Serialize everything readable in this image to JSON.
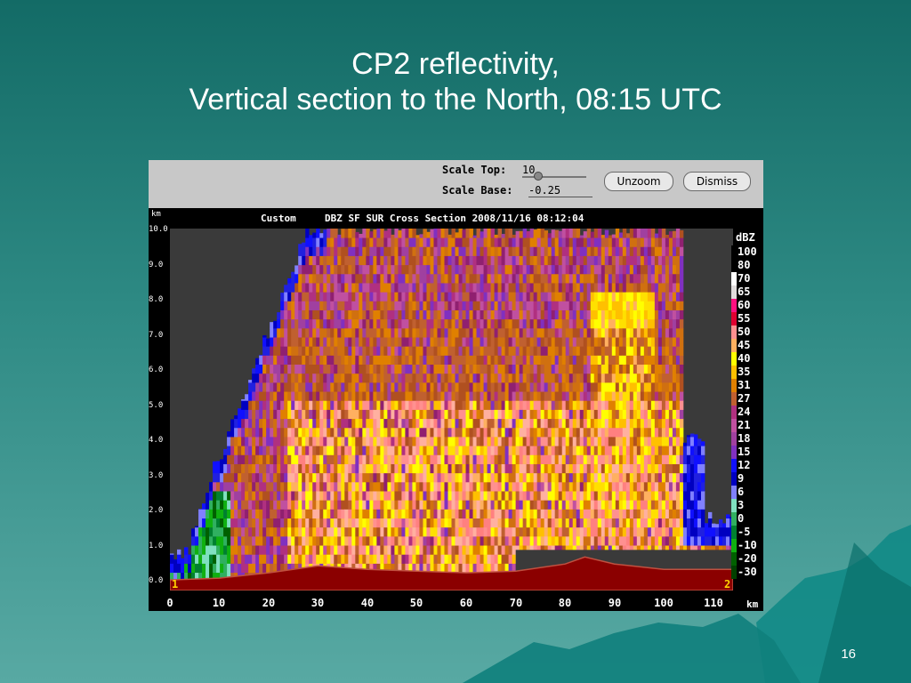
{
  "slide": {
    "title_line1": "CP2 reflectivity,",
    "title_line2": "Vertical section to the North, 08:15 UTC",
    "page_number": "16"
  },
  "toolbar": {
    "scale_top_label": "Scale Top:",
    "scale_top_value": "10",
    "scale_base_label": "Scale Base:",
    "scale_base_value": "-0.25",
    "unzoom_label": "Unzoom",
    "dismiss_label": "Dismiss"
  },
  "plot_header": {
    "mode": "Custom",
    "title": "DBZ SF SUR Cross Section 2008/11/16 08:12:04",
    "y_unit": "km",
    "x_unit": "km",
    "left_point": "1",
    "right_point": "2"
  },
  "chart_data": {
    "type": "heatmap",
    "title": "DBZ SF SUR Cross Section 2008/11/16 08:12:04",
    "xlabel": "km",
    "ylabel": "km",
    "xlim": [
      0,
      114
    ],
    "ylim": [
      -0.25,
      10
    ],
    "x_ticks": [
      "0",
      "10",
      "20",
      "30",
      "40",
      "50",
      "60",
      "70",
      "80",
      "90",
      "100",
      "110"
    ],
    "y_ticks": [
      "0.0",
      "1.0",
      "2.0",
      "3.0",
      "4.0",
      "5.0",
      "6.0",
      "7.0",
      "8.0",
      "9.0",
      "10.0"
    ],
    "grid": false,
    "legend_placement": "right",
    "legend_title": "dBZ",
    "legend": [
      {
        "label": "100",
        "color": "#000000"
      },
      {
        "label": "80",
        "color": "#000000"
      },
      {
        "label": "70",
        "color": "#ffffff"
      },
      {
        "label": "65",
        "color": "#e0dcdc"
      },
      {
        "label": "60",
        "color": "#ff1080"
      },
      {
        "label": "55",
        "color": "#e00030"
      },
      {
        "label": "50",
        "color": "#ff9090"
      },
      {
        "label": "45",
        "color": "#ffb060"
      },
      {
        "label": "40",
        "color": "#ffff00"
      },
      {
        "label": "35",
        "color": "#ffc000"
      },
      {
        "label": "31",
        "color": "#e08000"
      },
      {
        "label": "27",
        "color": "#c06030"
      },
      {
        "label": "24",
        "color": "#b03080"
      },
      {
        "label": "21",
        "color": "#c050a0"
      },
      {
        "label": "18",
        "color": "#a040a0"
      },
      {
        "label": "15",
        "color": "#8030c0"
      },
      {
        "label": "12",
        "color": "#1010ff"
      },
      {
        "label": "9",
        "color": "#0000c0"
      },
      {
        "label": "6",
        "color": "#8080ff"
      },
      {
        "label": "3",
        "color": "#80e0c0"
      },
      {
        "label": "0",
        "color": "#30b060"
      },
      {
        "label": "-5",
        "color": "#008030"
      },
      {
        "label": "-10",
        "color": "#10b010"
      },
      {
        "label": "-20",
        "color": "#006000"
      },
      {
        "label": "-30",
        "color": "#004000"
      }
    ]
  },
  "colors": {
    "background": "#136b66",
    "terrain": "#8b0000",
    "plot_background": "#3a3a3a",
    "toolbar": "#c8c8c8"
  }
}
